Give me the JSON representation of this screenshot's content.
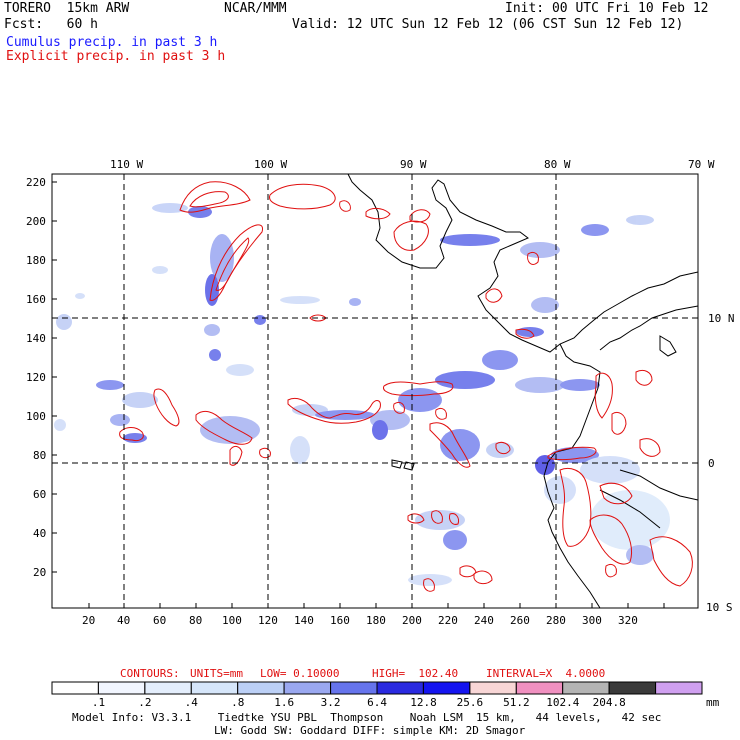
{
  "header": {
    "model": "TORERO  15km ARW",
    "org": "NCAR/MMM",
    "init": "Init: 00 UTC Fri 10 Feb 12",
    "fcst": "Fcst:   60 h",
    "valid": "Valid: 12 UTC Sun 12 Feb 12 (06 CST Sun 12 Feb 12)",
    "cumulus": "Cumulus precip. in past 3 h",
    "explicit": "Explicit precip. in past 3 h"
  },
  "colors": {
    "cumulus_text": "#1a1aff",
    "explicit_text": "#e01010",
    "contour": "#e01010",
    "coast": "#000000"
  },
  "map": {
    "lon_labels": [
      "110 W",
      "100 W",
      "90 W",
      "80 W",
      "70 W"
    ],
    "lat_labels": [
      "10 N",
      "0",
      "10 S"
    ],
    "y_ticks": [
      "220",
      "200",
      "180",
      "160",
      "140",
      "120",
      "100",
      "80",
      "60",
      "40",
      "20"
    ],
    "x_ticks": [
      "20",
      "40",
      "60",
      "80",
      "100",
      "120",
      "140",
      "160",
      "180",
      "200",
      "220",
      "240",
      "260",
      "280",
      "300",
      "320"
    ]
  },
  "contours_info": {
    "label": "CONTOURS:",
    "units": "UNITS=mm",
    "low": "LOW= 0.10000",
    "high": "HIGH=  102.40",
    "interval": "INTERVAL=X  4.0000"
  },
  "colorbar": {
    "unit": "mm",
    "colors": [
      "#ffffff",
      "#f2f6ff",
      "#e4eefc",
      "#d6e6fa",
      "#bcd0f6",
      "#9aa8f0",
      "#6674ec",
      "#2a2ae0",
      "#1414f0",
      "#f8d6d6",
      "#f090c0",
      "#b4b4b4",
      "#3a3a3a",
      "#d0a0f0"
    ],
    "labels": [
      ".1",
      ".2",
      ".4",
      ".8",
      "1.6",
      "3.2",
      "6.4",
      "12.8",
      "25.6",
      "51.2",
      "102.4",
      "204.8"
    ]
  },
  "footer": {
    "line1": "Model Info: V3.3.1    Tiedtke YSU PBL  Thompson    Noah LSM  15 km,   44 levels,   42 sec",
    "line2": "LW: Godd SW: Goddard DIFF: simple KM: 2D Smagor"
  }
}
